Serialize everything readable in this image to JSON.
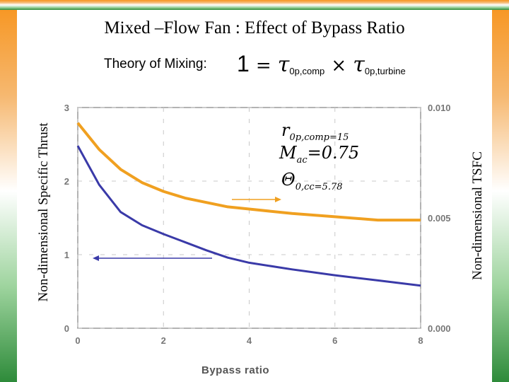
{
  "slide": {
    "title": "Mixed –Flow Fan : Effect of Bypass Ratio",
    "theory_label": "Theory of Mixing:",
    "equation": {
      "one": "1",
      "equals": "=",
      "tau1": "τ",
      "tau1_sub": "0p,comp",
      "times": "×",
      "tau2": "τ",
      "tau2_sub": "0p,turbine"
    },
    "annotations": {
      "a1_main": "r",
      "a1_sub": "0p,comp=15",
      "a2_main": "M",
      "a2_sub": "ac",
      "a2_rest": "=0.75",
      "a3_main": "Θ",
      "a3_sub": "0,cc=5.78"
    },
    "colors": {
      "stripe_orange": "#f7941d",
      "stripe_green": "#2e8b3a",
      "thrust_line": "#3a3aa8",
      "tsfc_line": "#f0a020",
      "frame": "#9a9a9a"
    }
  },
  "chart_data": {
    "type": "line",
    "xlabel": "Bypass ratio",
    "ylabel_left": "Non-dimensional Specific Thrust",
    "ylabel_right": "Non-dimensional TSFC",
    "xlim": [
      0,
      8
    ],
    "ylim_left": [
      0,
      3
    ],
    "ylim_right": [
      0.0,
      0.01
    ],
    "x_ticks": [
      "0",
      "2",
      "4",
      "6",
      "8"
    ],
    "y_left_ticks": [
      "0",
      "1",
      "2",
      "3"
    ],
    "y_right_ticks": [
      "0.000",
      "0.005",
      "0.010"
    ],
    "grid": true,
    "series": [
      {
        "axis": "left",
        "color": "#3a3aa8",
        "x": [
          0,
          0.5,
          1,
          1.5,
          2,
          2.5,
          3,
          3.5,
          4,
          5,
          6,
          7,
          8
        ],
        "y": [
          2.48,
          1.95,
          1.58,
          1.4,
          1.28,
          1.17,
          1.06,
          0.96,
          0.89,
          0.8,
          0.72,
          0.65,
          0.58
        ]
      },
      {
        "axis": "right",
        "color": "#f0a020",
        "x": [
          0,
          0.5,
          1,
          1.5,
          2,
          2.5,
          3,
          3.5,
          4,
          5,
          6,
          7,
          8
        ],
        "y": [
          0.0093,
          0.0081,
          0.0072,
          0.0066,
          0.0062,
          0.0059,
          0.0057,
          0.0055,
          0.0054,
          0.0052,
          0.00505,
          0.0049,
          0.0049
        ]
      }
    ]
  }
}
